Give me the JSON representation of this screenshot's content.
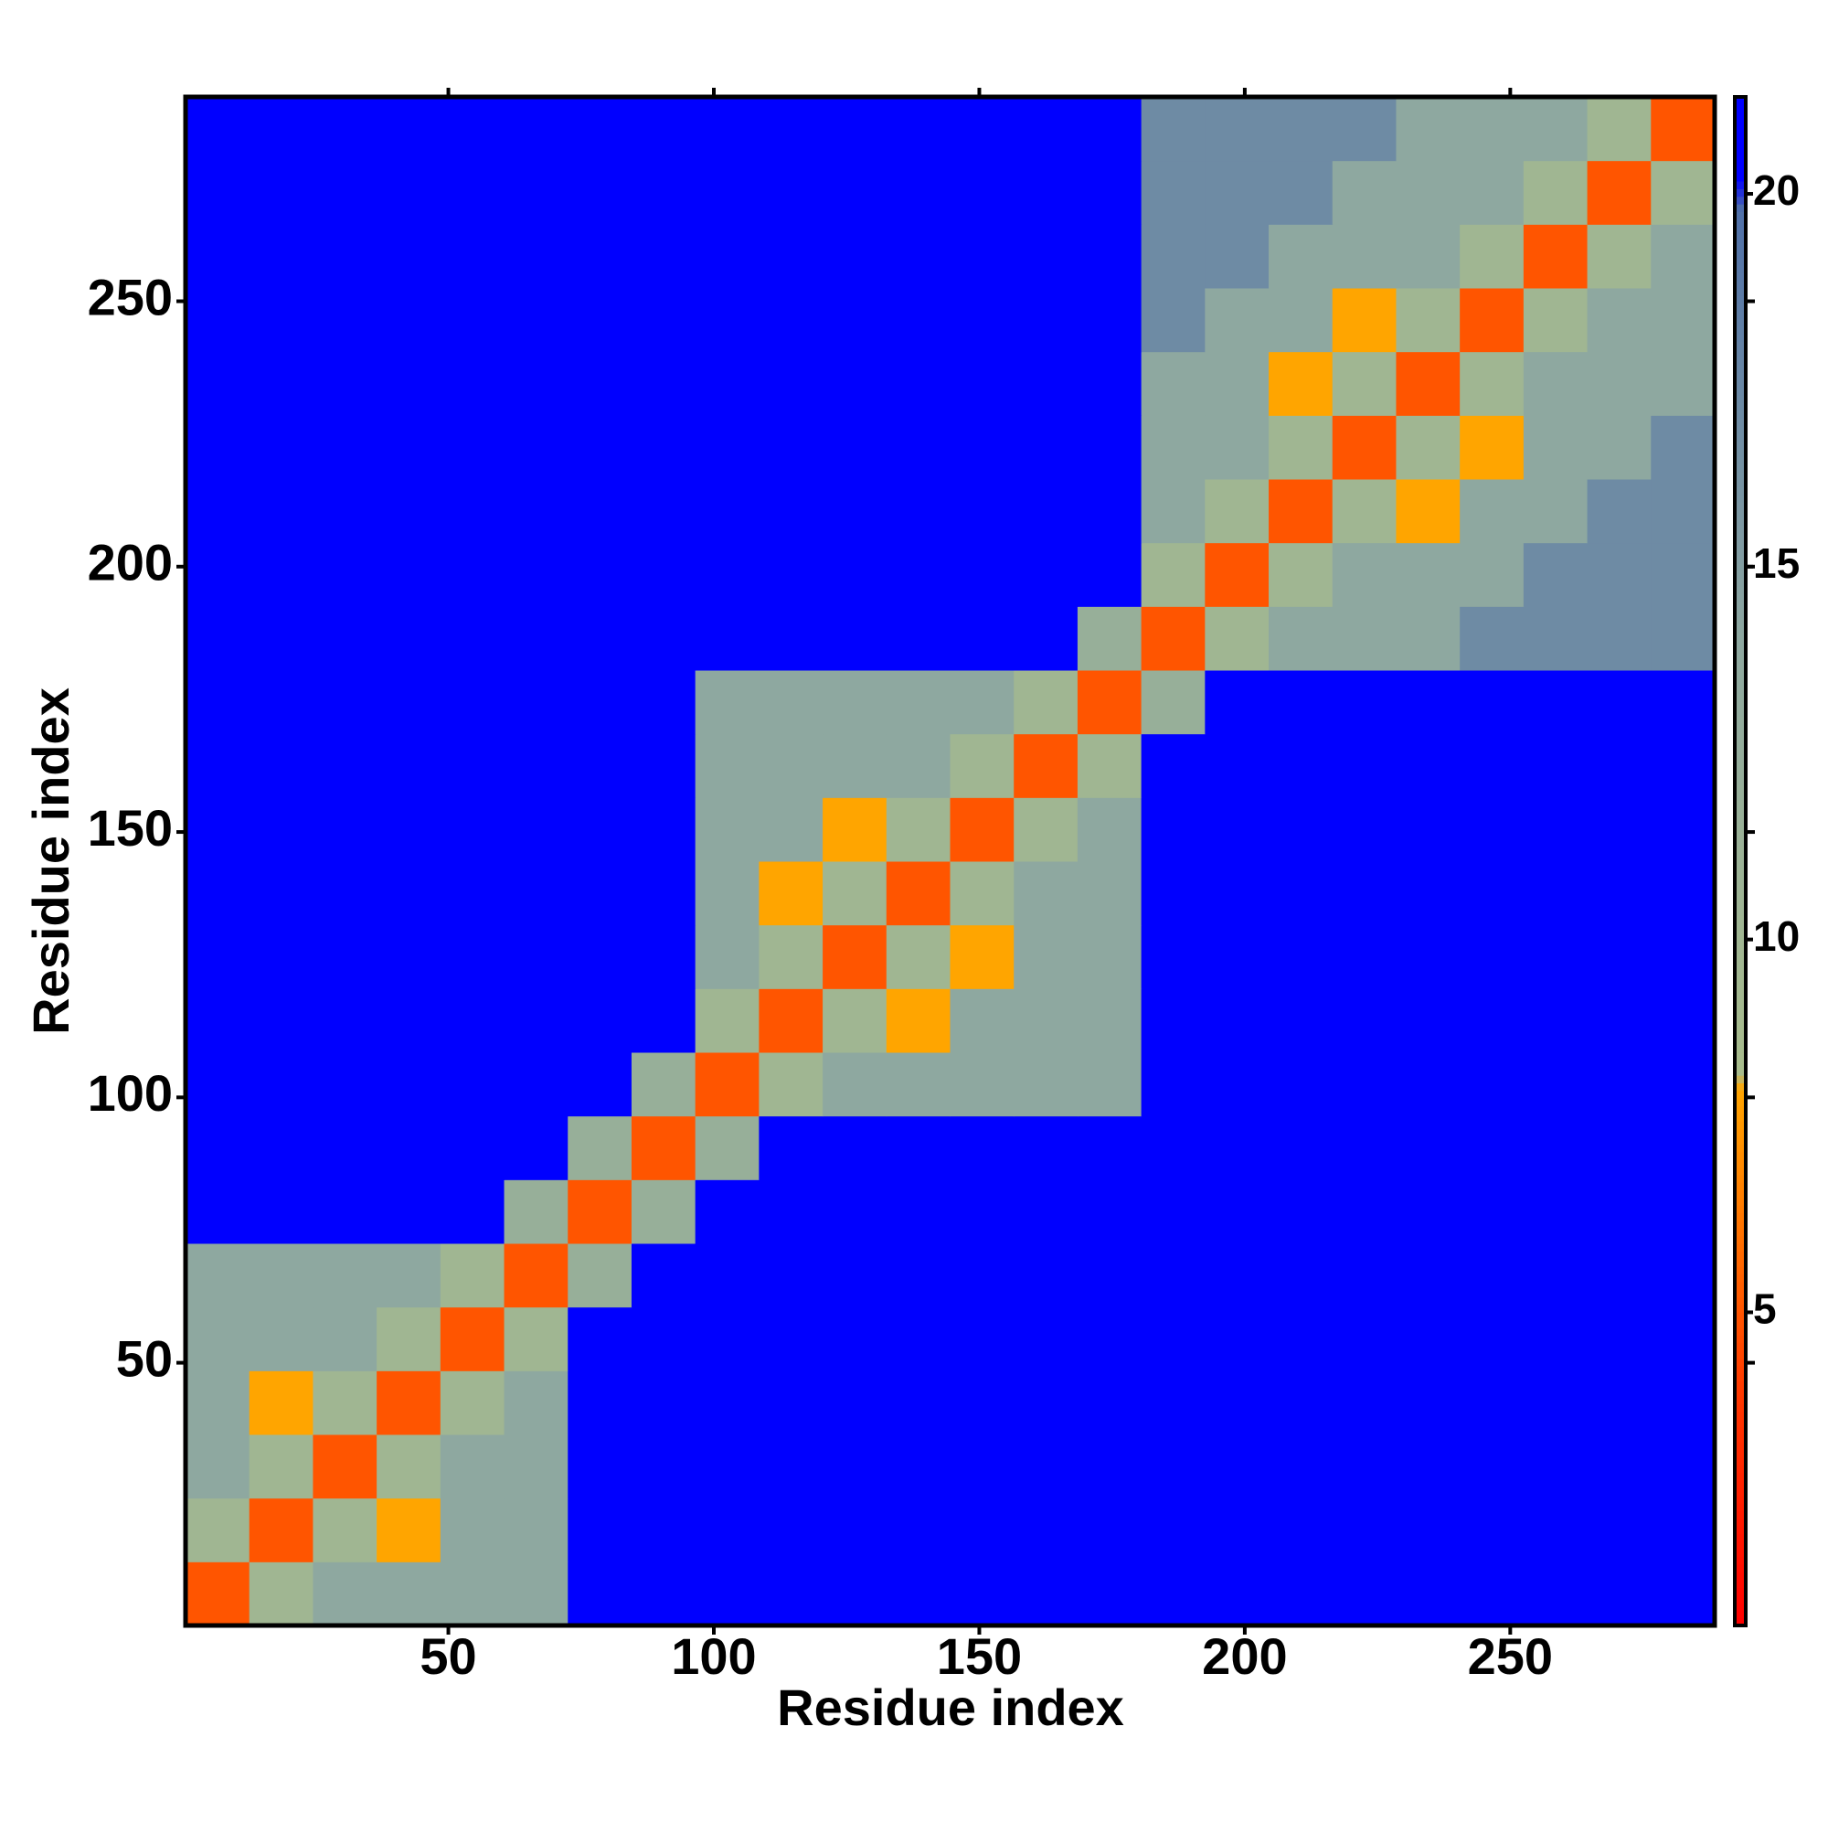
{
  "chart_data": {
    "type": "heatmap",
    "x_label": "Residue index",
    "y_label": "Residue index",
    "x": [
      6.5,
      18.5,
      30.5,
      42.5,
      54.5,
      66.5,
      78.5,
      90.5,
      102.5,
      114.5,
      126.5,
      138.5,
      150.5,
      162.5,
      174.5,
      186.5,
      198.5,
      210.5,
      222.5,
      234.5,
      246.5,
      258.5,
      270.5,
      282.5
    ],
    "y": [
      6.5,
      18.5,
      30.5,
      42.5,
      54.5,
      66.5,
      78.5,
      90.5,
      102.5,
      114.5,
      126.5,
      138.5,
      150.5,
      162.5,
      174.5,
      186.5,
      198.5,
      210.5,
      222.5,
      234.5,
      246.5,
      258.5,
      270.5,
      282.5
    ],
    "z": [
      [
        5,
        10,
        14,
        14,
        14,
        14,
        21,
        21,
        21,
        21,
        21,
        21,
        21,
        21,
        21,
        21,
        21,
        21,
        21,
        21,
        21,
        21,
        21,
        21
      ],
      [
        10,
        5,
        10,
        8,
        14,
        14,
        21,
        21,
        21,
        21,
        21,
        21,
        21,
        21,
        21,
        21,
        21,
        21,
        21,
        21,
        21,
        21,
        21,
        21
      ],
      [
        14,
        10,
        5,
        10,
        14,
        14,
        21,
        21,
        21,
        21,
        21,
        21,
        21,
        21,
        21,
        21,
        21,
        21,
        21,
        21,
        21,
        21,
        21,
        21
      ],
      [
        14,
        8,
        10,
        5,
        10,
        14,
        21,
        21,
        21,
        21,
        21,
        21,
        21,
        21,
        21,
        21,
        21,
        21,
        21,
        21,
        21,
        21,
        21,
        21
      ],
      [
        14,
        14,
        14,
        10,
        5,
        10,
        21,
        21,
        21,
        21,
        21,
        21,
        21,
        21,
        21,
        21,
        21,
        21,
        21,
        21,
        21,
        21,
        21,
        21
      ],
      [
        14,
        14,
        14,
        14,
        10,
        5,
        12,
        21,
        21,
        21,
        21,
        21,
        21,
        21,
        21,
        21,
        21,
        21,
        21,
        21,
        21,
        21,
        21,
        21
      ],
      [
        21,
        21,
        21,
        21,
        21,
        12,
        5,
        12,
        21,
        21,
        21,
        21,
        21,
        21,
        21,
        21,
        21,
        21,
        21,
        21,
        21,
        21,
        21,
        21
      ],
      [
        21,
        21,
        21,
        21,
        21,
        21,
        12,
        5,
        12,
        21,
        21,
        21,
        21,
        21,
        21,
        21,
        21,
        21,
        21,
        21,
        21,
        21,
        21,
        21
      ],
      [
        21,
        21,
        21,
        21,
        21,
        21,
        21,
        12,
        5,
        10,
        14,
        14,
        14,
        14,
        14,
        21,
        21,
        21,
        21,
        21,
        21,
        21,
        21,
        21
      ],
      [
        21,
        21,
        21,
        21,
        21,
        21,
        21,
        21,
        10,
        5,
        10,
        8,
        14,
        14,
        14,
        21,
        21,
        21,
        21,
        21,
        21,
        21,
        21,
        21
      ],
      [
        21,
        21,
        21,
        21,
        21,
        21,
        21,
        21,
        14,
        10,
        5,
        10,
        8,
        14,
        14,
        21,
        21,
        21,
        21,
        21,
        21,
        21,
        21,
        21
      ],
      [
        21,
        21,
        21,
        21,
        21,
        21,
        21,
        21,
        14,
        8,
        10,
        5,
        10,
        14,
        14,
        21,
        21,
        21,
        21,
        21,
        21,
        21,
        21,
        21
      ],
      [
        21,
        21,
        21,
        21,
        21,
        21,
        21,
        21,
        14,
        14,
        8,
        10,
        5,
        10,
        14,
        21,
        21,
        21,
        21,
        21,
        21,
        21,
        21,
        21
      ],
      [
        21,
        21,
        21,
        21,
        21,
        21,
        21,
        21,
        14,
        14,
        14,
        14,
        10,
        5,
        10,
        21,
        21,
        21,
        21,
        21,
        21,
        21,
        21,
        21
      ],
      [
        21,
        21,
        21,
        21,
        21,
        21,
        21,
        21,
        14,
        14,
        14,
        14,
        14,
        10,
        5,
        12,
        21,
        21,
        21,
        21,
        21,
        21,
        21,
        21
      ],
      [
        21,
        21,
        21,
        21,
        21,
        21,
        21,
        21,
        21,
        21,
        21,
        21,
        21,
        21,
        12,
        5,
        10,
        14,
        14,
        14,
        17,
        17,
        17,
        17
      ],
      [
        21,
        21,
        21,
        21,
        21,
        21,
        21,
        21,
        21,
        21,
        21,
        21,
        21,
        21,
        21,
        10,
        5,
        10,
        14,
        14,
        14,
        17,
        17,
        17
      ],
      [
        21,
        21,
        21,
        21,
        21,
        21,
        21,
        21,
        21,
        21,
        21,
        21,
        21,
        21,
        21,
        14,
        10,
        5,
        10,
        8,
        14,
        14,
        17,
        17
      ],
      [
        21,
        21,
        21,
        21,
        21,
        21,
        21,
        21,
        21,
        21,
        21,
        21,
        21,
        21,
        21,
        14,
        14,
        10,
        5,
        10,
        8,
        14,
        14,
        17
      ],
      [
        21,
        21,
        21,
        21,
        21,
        21,
        21,
        21,
        21,
        21,
        21,
        21,
        21,
        21,
        21,
        14,
        14,
        8,
        10,
        5,
        10,
        14,
        14,
        14
      ],
      [
        21,
        21,
        21,
        21,
        21,
        21,
        21,
        21,
        21,
        21,
        21,
        21,
        21,
        21,
        21,
        17,
        14,
        14,
        8,
        10,
        5,
        10,
        14,
        14
      ],
      [
        21,
        21,
        21,
        21,
        21,
        21,
        21,
        21,
        21,
        21,
        21,
        21,
        21,
        21,
        21,
        17,
        17,
        14,
        14,
        14,
        10,
        5,
        10,
        14
      ],
      [
        21,
        21,
        21,
        21,
        21,
        21,
        21,
        21,
        21,
        21,
        21,
        21,
        21,
        21,
        21,
        17,
        17,
        17,
        14,
        14,
        14,
        10,
        5,
        10
      ],
      [
        21,
        21,
        21,
        21,
        21,
        21,
        21,
        21,
        21,
        21,
        21,
        21,
        21,
        21,
        21,
        17,
        17,
        17,
        17,
        14,
        14,
        14,
        10,
        5
      ]
    ],
    "xlim": [
      0.5,
      288.5
    ],
    "ylim": [
      0.5,
      288.5
    ],
    "xticks": [
      50,
      100,
      150,
      200,
      250
    ],
    "yticks": [
      50,
      100,
      150,
      200,
      250
    ],
    "zlim": [
      0.8,
      21.3
    ],
    "zticks": [
      5,
      10,
      15,
      20
    ],
    "colorscale": [
      [
        0.8,
        "#ff0000"
      ],
      [
        4,
        "#ff3a00"
      ],
      [
        8,
        "#ffa500"
      ],
      [
        8.2,
        "#a8bc8c"
      ],
      [
        14,
        "#8ea8a0"
      ],
      [
        19.8,
        "#5070a8"
      ],
      [
        20.2,
        "#0000ff"
      ],
      [
        21.3,
        "#0000ff"
      ]
    ]
  }
}
